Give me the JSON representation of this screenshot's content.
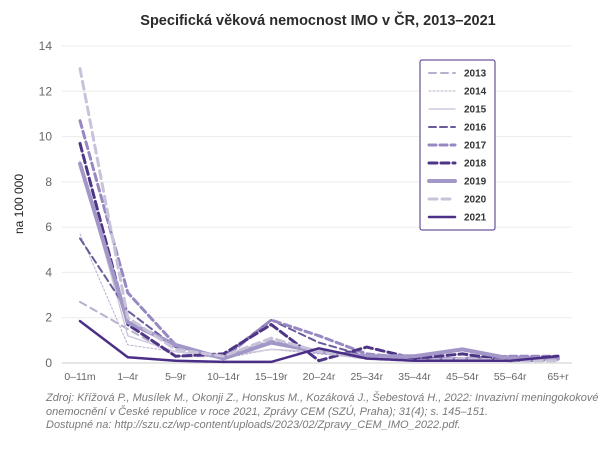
{
  "chart_data": {
    "type": "line",
    "title": "Specifická věková nemocnost IMO v ČR, 2013–2021",
    "xlabel": "",
    "ylabel": "na 100 000",
    "ylim": [
      0,
      14
    ],
    "yticks": [
      "0",
      "2",
      "4",
      "6",
      "8",
      "10",
      "12",
      "14"
    ],
    "yticks_values": [
      0,
      2,
      4,
      6,
      8,
      10,
      12,
      14
    ],
    "grid": true,
    "legend_position": "top-right",
    "categories": [
      "0–11m",
      "1–4r",
      "5–9r",
      "10–14r",
      "15–19r",
      "20–24r",
      "25–34r",
      "35–44r",
      "45–54r",
      "55–64r",
      "65+r"
    ],
    "series": [
      {
        "name": "2013",
        "values": [
          2.7,
          1.5,
          0.3,
          0.3,
          1.0,
          0.5,
          0.3,
          0.1,
          0.2,
          0.3,
          0.2
        ],
        "color": "#b8b0cc",
        "dash": "7,5",
        "width": 2
      },
      {
        "name": "2014",
        "values": [
          5.7,
          0.8,
          0.5,
          0.2,
          0.6,
          0.4,
          0.2,
          0.15,
          0.1,
          0.2,
          0.1
        ],
        "color": "#b8b0cc",
        "dash": "2,2",
        "width": 1
      },
      {
        "name": "2015",
        "values": [
          8.9,
          1.2,
          0.5,
          0.3,
          0.6,
          0.5,
          0.2,
          0.15,
          0.2,
          0.2,
          0.15
        ],
        "color": "#cfc8de",
        "dash": "",
        "width": 1.5
      },
      {
        "name": "2016",
        "values": [
          5.5,
          2.3,
          0.7,
          0.3,
          1.9,
          0.9,
          0.3,
          0.2,
          0.2,
          0.1,
          0.1
        ],
        "color": "#6b5a9b",
        "dash": "7,4",
        "width": 2
      },
      {
        "name": "2017",
        "values": [
          10.7,
          3.1,
          0.8,
          0.2,
          1.9,
          1.2,
          0.4,
          0.2,
          0.2,
          0.3,
          0.3
        ],
        "color": "#9888c2",
        "dash": "7,4",
        "width": 3
      },
      {
        "name": "2018",
        "values": [
          9.7,
          1.7,
          0.3,
          0.4,
          1.7,
          0.1,
          0.7,
          0.2,
          0.4,
          0.1,
          0.3
        ],
        "color": "#4e3586",
        "dash": "8,4",
        "width": 3
      },
      {
        "name": "2019",
        "values": [
          8.8,
          1.8,
          0.8,
          0.2,
          0.9,
          0.5,
          0.3,
          0.3,
          0.6,
          0.2,
          0.2
        ],
        "color": "#a397c8",
        "dash": "",
        "width": 4
      },
      {
        "name": "2020",
        "values": [
          13.0,
          2.0,
          0.6,
          0.3,
          1.1,
          0.5,
          0.2,
          0.1,
          0.2,
          0.1,
          0.1
        ],
        "color": "#c9c3da",
        "dash": "8,5",
        "width": 3
      },
      {
        "name": "2021",
        "values": [
          1.85,
          0.25,
          0.1,
          0.05,
          0.05,
          0.65,
          0.2,
          0.1,
          0.1,
          0.1,
          0.3
        ],
        "color": "#4b2f86",
        "dash": "",
        "width": 2.5
      }
    ]
  },
  "source": {
    "line1": "Zdroj: Křížová P., Musílek M., Okonji Z., Honskus M., Kozáková J., Šebestová H., 2022: Invazivní meningokokové",
    "line2": "onemocnění v České republice v roce 2021, Zprávy CEM (SZÚ, Praha); 31(4); s. 145–151.",
    "line3": "Dostupné na: http://szu.cz/wp-content/uploads/2023/02/Zpravy_CEM_IMO_2022.pdf."
  }
}
